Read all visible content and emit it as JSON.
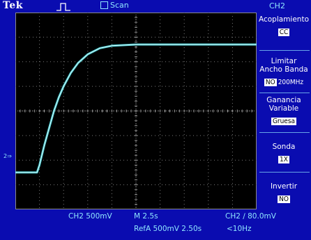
{
  "topbar": {
    "brand": "Tek",
    "trigger_icon": "pulse-trigger-icon",
    "scan_label": "Scan",
    "channel_title": "CH2"
  },
  "colors": {
    "background": "#0a0cb0",
    "screen": "#000000",
    "trace": "#4fe0e8",
    "text": "#ffffff",
    "accent": "#8fe6ff"
  },
  "menu": {
    "coupling": {
      "label": "Acoplamiento",
      "value": "CC"
    },
    "bandwidth": {
      "label1": "Limitar",
      "label2": "Ancho Banda",
      "value": "NO",
      "value2": "200MHz"
    },
    "gain": {
      "label1": "Ganancia",
      "label2": "Variable",
      "value": "Gruesa"
    },
    "probe": {
      "label": "Sonda",
      "value": "1X"
    },
    "invert": {
      "label": "Invertir",
      "value": "NO"
    }
  },
  "status": {
    "ch_scale": "CH2  500mV",
    "time_scale": "M 2.5s",
    "trigger": "CH2  ∕  80.0mV",
    "ref": "RefA 500mV 2.50s",
    "freq": "<10Hz"
  },
  "ground_marker": "2⇒",
  "chart_data": {
    "type": "line",
    "title": "",
    "xlabel": "",
    "ylabel": "",
    "x_divisions": 10,
    "y_divisions": 8,
    "x_unit_per_div": "2.5s",
    "y_unit_per_div": "500mV",
    "series": [
      {
        "x_div": [
          0,
          0.9,
          1.0,
          1.2,
          1.4,
          1.6,
          1.8,
          2.0,
          2.3,
          2.6,
          3.0,
          3.5,
          4.0,
          5.0,
          6.0,
          7.0,
          8.0,
          9.0,
          10.0
        ],
        "y_div": [
          0.0,
          0.0,
          0.3,
          1.1,
          1.8,
          2.5,
          3.05,
          3.5,
          4.05,
          4.45,
          4.8,
          5.05,
          5.15,
          5.2,
          5.2,
          5.2,
          5.2,
          5.2,
          5.2
        ]
      }
    ]
  }
}
